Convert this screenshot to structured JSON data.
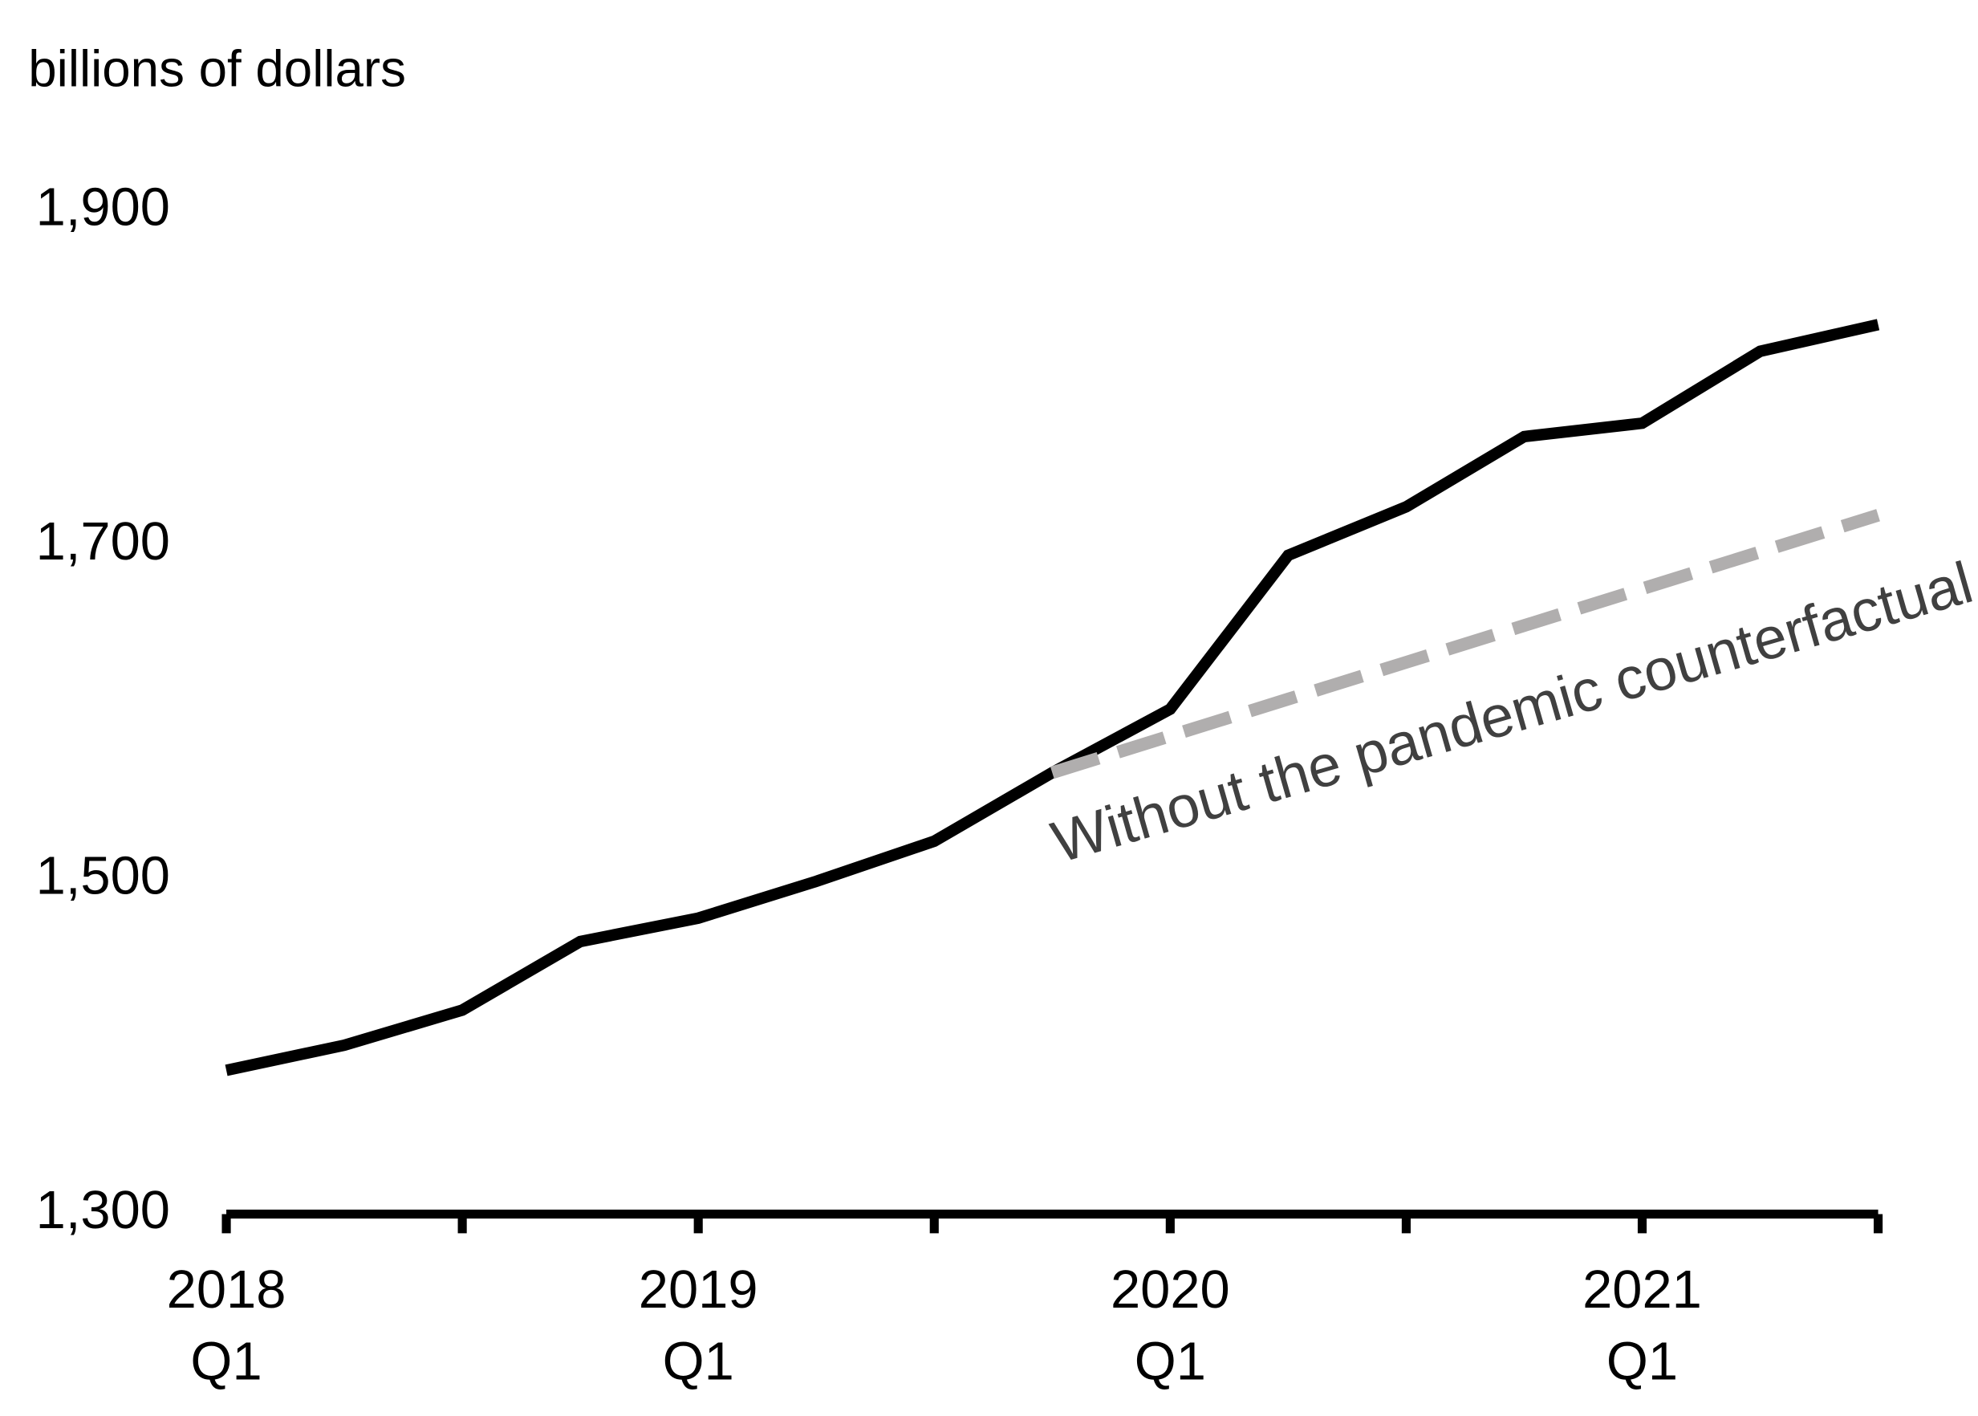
{
  "chart_data": {
    "type": "line",
    "y_label": "billions of dollars",
    "categories": [
      "2018 Q1",
      null,
      null,
      null,
      "2019 Q1",
      null,
      null,
      null,
      "2020 Q1",
      null,
      null,
      null,
      "2021 Q1",
      null,
      null
    ],
    "series": [
      {
        "color": "#000000",
        "dashed": false,
        "values": [
          1386,
          1401,
          1422,
          1463,
          1477,
          1499,
          1523,
          1564,
          1602,
          1694,
          1723,
          1765,
          1773,
          1816,
          1832
        ]
      },
      {
        "name": "Without the pandemic\ncounterfactual",
        "color": "#b0aeae",
        "dashed": true,
        "values": [
          null,
          null,
          null,
          null,
          null,
          null,
          null,
          1564,
          1586,
          1608,
          1630,
          1652,
          1674,
          1696,
          1718
        ]
      }
    ],
    "ylim": [
      1300,
      1900
    ],
    "yticks": [
      {
        "value": 1300,
        "label": "1,300"
      },
      {
        "value": 1500,
        "label": "1,500"
      },
      {
        "value": 1700,
        "label": "1,700"
      },
      {
        "value": 1900,
        "label": "1,900"
      }
    ],
    "grid": false
  }
}
